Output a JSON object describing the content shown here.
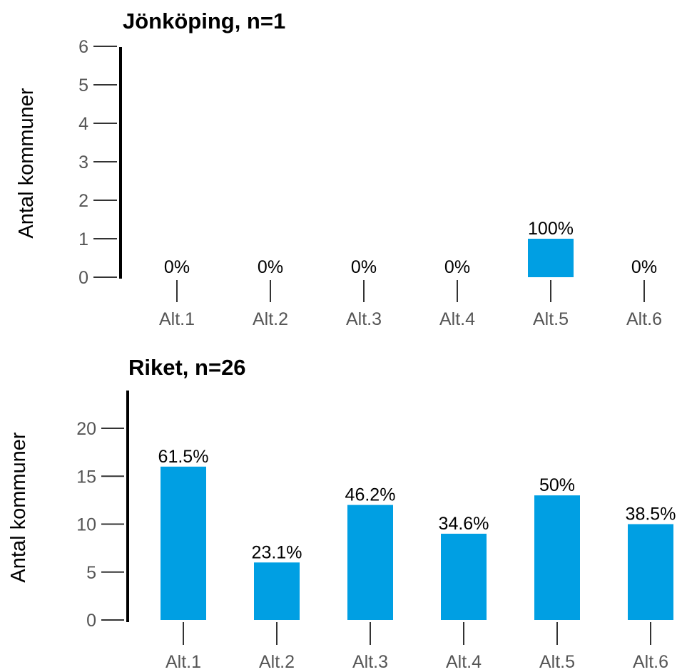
{
  "chart_data": [
    {
      "type": "bar",
      "title": "Jönköping, n=1",
      "ylabel": "Antal kommuner",
      "xlabel": "",
      "categories": [
        "Alt.1",
        "Alt.2",
        "Alt.3",
        "Alt.4",
        "Alt.5",
        "Alt.6"
      ],
      "values": [
        0,
        0,
        0,
        0,
        1,
        0
      ],
      "data_labels": [
        "0%",
        "0%",
        "0%",
        "0%",
        "100%",
        "0%"
      ],
      "yticks": [
        0,
        1,
        2,
        3,
        4,
        5,
        6
      ],
      "ylim": [
        0,
        6
      ],
      "grid": false,
      "bar_color": "#009fe3"
    },
    {
      "type": "bar",
      "title": "Riket, n=26",
      "ylabel": "Antal kommuner",
      "xlabel": "",
      "categories": [
        "Alt.1",
        "Alt.2",
        "Alt.3",
        "Alt.4",
        "Alt.5",
        "Alt.6"
      ],
      "values": [
        16,
        6,
        12,
        9,
        13,
        10
      ],
      "data_labels": [
        "61.5%",
        "23.1%",
        "46.2%",
        "34.6%",
        "50%",
        "38.5%"
      ],
      "yticks": [
        0,
        5,
        10,
        15,
        20
      ],
      "ylim": [
        0,
        24
      ],
      "grid": false,
      "bar_color": "#009fe3"
    }
  ]
}
